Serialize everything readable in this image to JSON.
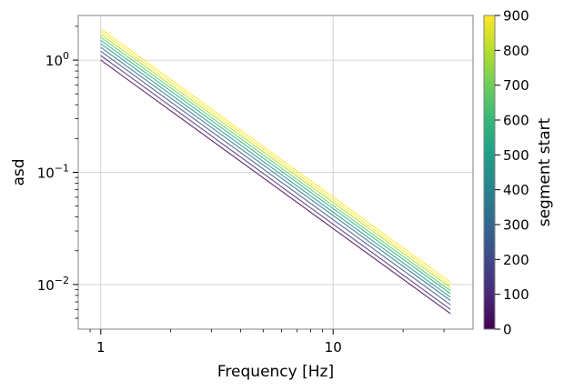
{
  "chart_data": {
    "type": "line",
    "title": "",
    "xlabel": "Frequency [Hz]",
    "ylabel": "asd",
    "xscale": "log",
    "yscale": "log",
    "xlim": [
      0.8,
      40
    ],
    "ylim": [
      0.004,
      2.5
    ],
    "grid": true,
    "x_ticks": [
      {
        "value": 1,
        "label": "1"
      },
      {
        "value": 10,
        "label": "10"
      }
    ],
    "y_ticks": [
      {
        "value": 0.01,
        "base": "10",
        "exp": "−2"
      },
      {
        "value": 0.1,
        "base": "10",
        "exp": "−1"
      },
      {
        "value": 1,
        "base": "10",
        "exp": "0"
      }
    ],
    "x": [
      1,
      32
    ],
    "series": [
      {
        "segment_start": 0,
        "color": "#440154",
        "values": [
          1.0,
          0.0055
        ]
      },
      {
        "segment_start": 100,
        "color": "#472d7b",
        "values": [
          1.1,
          0.006
        ]
      },
      {
        "segment_start": 200,
        "color": "#3b528b",
        "values": [
          1.2,
          0.0066
        ]
      },
      {
        "segment_start": 300,
        "color": "#2c728e",
        "values": [
          1.3,
          0.0072
        ]
      },
      {
        "segment_start": 400,
        "color": "#21918c",
        "values": [
          1.4,
          0.0077
        ]
      },
      {
        "segment_start": 500,
        "color": "#28ae80",
        "values": [
          1.5,
          0.0083
        ]
      },
      {
        "segment_start": 600,
        "color": "#5ec962",
        "values": [
          1.6,
          0.0088
        ]
      },
      {
        "segment_start": 700,
        "color": "#addc30",
        "values": [
          1.7,
          0.0094
        ]
      },
      {
        "segment_start": 800,
        "color": "#fde725",
        "values": [
          1.8,
          0.0099
        ]
      },
      {
        "segment_start": 900,
        "color": "#fde725",
        "values": [
          1.9,
          0.0105
        ]
      }
    ],
    "colorbar": {
      "label": "segment start",
      "min": 0,
      "max": 900,
      "ticks": [
        "0",
        "100",
        "200",
        "300",
        "400",
        "500",
        "600",
        "700",
        "800",
        "900"
      ],
      "colormap": [
        "#440154",
        "#482878",
        "#3e4989",
        "#31688e",
        "#26828e",
        "#1f9e89",
        "#35b779",
        "#6ece58",
        "#b5de2b",
        "#fde725"
      ]
    }
  }
}
